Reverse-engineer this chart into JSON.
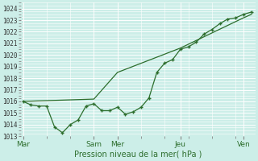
{
  "background_color": "#cceee8",
  "grid_color_major": "#ffffff",
  "grid_color_minor": "#e8f8f5",
  "line_color": "#2d6e2d",
  "marker_color": "#2d6e2d",
  "xlabel": "Pression niveau de la mer( hPa )",
  "ylim": [
    1013,
    1024.5
  ],
  "yticks": [
    1013,
    1014,
    1015,
    1016,
    1017,
    1018,
    1019,
    1020,
    1021,
    1022,
    1023,
    1024
  ],
  "xtick_labels": [
    "Mar",
    "Sam",
    "Mer",
    "Jeu",
    "Ven"
  ],
  "xtick_positions": [
    0,
    18,
    24,
    40,
    56
  ],
  "vline_positions": [
    0,
    18,
    24,
    40,
    56
  ],
  "xlim": [
    -0.5,
    59
  ],
  "series1_x": [
    0,
    2,
    4,
    6,
    8,
    10,
    12,
    14,
    16,
    18,
    20,
    22,
    24,
    26,
    28,
    30,
    32,
    34,
    36,
    38,
    40,
    42,
    44,
    46,
    48,
    50,
    52,
    54,
    56,
    58
  ],
  "series1_y": [
    1016.0,
    1015.7,
    1015.6,
    1015.6,
    1013.8,
    1013.3,
    1014.0,
    1014.4,
    1015.6,
    1015.8,
    1015.2,
    1015.2,
    1015.5,
    1014.9,
    1015.1,
    1015.5,
    1016.3,
    1018.5,
    1019.3,
    1019.6,
    1020.5,
    1020.7,
    1021.1,
    1021.8,
    1022.2,
    1022.7,
    1023.1,
    1023.2,
    1023.5,
    1023.7
  ],
  "series2_x": [
    0,
    18,
    24,
    40,
    56,
    58
  ],
  "series2_y": [
    1016.0,
    1016.2,
    1018.5,
    1020.6,
    1023.2,
    1023.5
  ]
}
